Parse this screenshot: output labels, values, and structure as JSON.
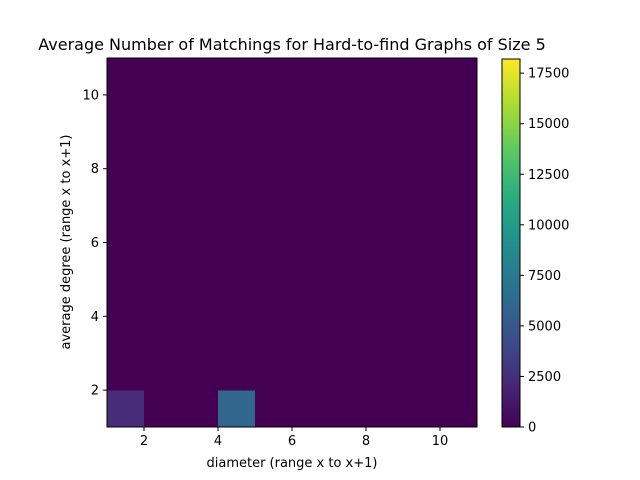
{
  "chart_data": {
    "type": "heatmap",
    "title": "Average Number of Matchings for Hard-to-find Graphs of Size 5",
    "xlabel": "diameter (range x to x+1)",
    "ylabel": "average degree (range x to x+1)",
    "xlim": [
      1,
      11
    ],
    "ylim": [
      1,
      11
    ],
    "x_ticks": [
      2,
      4,
      6,
      8,
      10
    ],
    "y_ticks": [
      2,
      4,
      6,
      8,
      10
    ],
    "x_bins": [
      1,
      2,
      3,
      4,
      5,
      6,
      7,
      8,
      9,
      10
    ],
    "y_bins": [
      1,
      2,
      3,
      4,
      5,
      6,
      7,
      8,
      9,
      10
    ],
    "background_value": 0,
    "cells": [
      {
        "x": 1,
        "y": 1,
        "value": 2300
      },
      {
        "x": 4,
        "y": 1,
        "value": 6100
      }
    ],
    "colorbar": {
      "min": 0,
      "max": 18200,
      "ticks": [
        0,
        2500,
        5000,
        7500,
        10000,
        12500,
        15000,
        17500
      ],
      "tick_labels": [
        "0",
        "2500",
        "5000",
        "7500",
        "10000",
        "12500",
        "15000",
        "17500"
      ],
      "colormap": "viridis"
    }
  }
}
